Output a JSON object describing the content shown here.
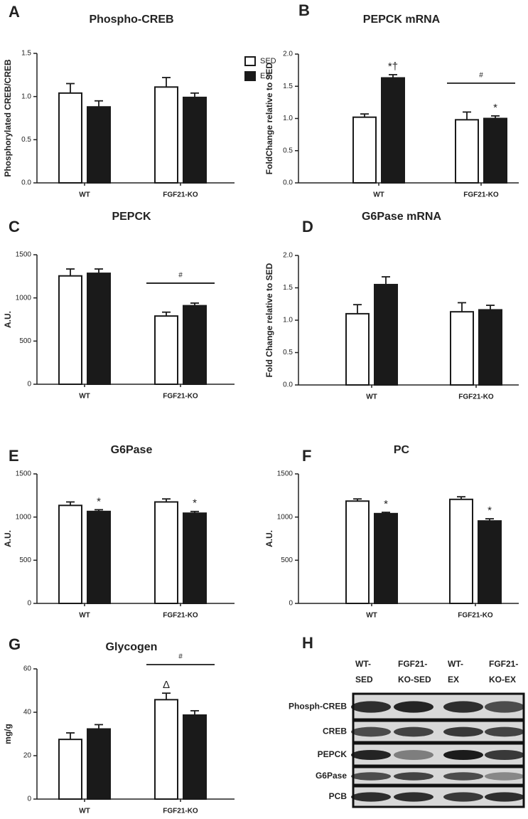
{
  "chart_data": [
    {
      "type": "bar",
      "panel": "A",
      "title": "Phospho-CREB",
      "y_label": "Phosphorylated CREB/CREB",
      "categories": [
        "WT",
        "FGF21-KO"
      ],
      "ylim": [
        0,
        1.5
      ],
      "yticks": [
        {
          "value": 0,
          "label": "0.0"
        },
        0.5,
        {
          "value": 1,
          "label": "1.0"
        },
        1.5
      ],
      "legend": true,
      "series": [
        {
          "name": "SED",
          "color": "#ffffff",
          "values": [
            1.04,
            1.11
          ],
          "errors": [
            0.11,
            0.11
          ]
        },
        {
          "name": "EX",
          "color": "#1a1a1a",
          "values": [
            0.88,
            0.99
          ],
          "errors": [
            0.07,
            0.05
          ]
        }
      ]
    },
    {
      "type": "bar",
      "panel": "B",
      "title": "PEPCK mRNA",
      "y_label": "FoldChange relative to SED",
      "categories": [
        "WT",
        "FGF21-KO"
      ],
      "ylim": [
        0,
        2
      ],
      "yticks": [
        {
          "value": 0,
          "label": "0.0"
        },
        0.5,
        {
          "value": 1,
          "label": "1.0"
        },
        1.5,
        {
          "value": 2,
          "label": "2.0"
        }
      ],
      "bracket_labels": [
        null,
        "#"
      ],
      "series": [
        {
          "name": "SED",
          "color": "#ffffff",
          "values": [
            1.02,
            0.98
          ],
          "errors": [
            0.05,
            0.12
          ],
          "marks": [
            null,
            null
          ]
        },
        {
          "name": "EX",
          "color": "#1a1a1a",
          "values": [
            1.63,
            1.0
          ],
          "errors": [
            0.05,
            0.04
          ],
          "marks": [
            "*†",
            "*"
          ]
        }
      ]
    },
    {
      "type": "bar",
      "panel": "C",
      "title": "PEPCK",
      "y_label": "A.U.",
      "categories": [
        "WT",
        "FGF21-KO"
      ],
      "ylim": [
        0,
        1500
      ],
      "yticks": [
        0,
        500,
        1000,
        1500
      ],
      "bracket_labels": [
        null,
        "#"
      ],
      "series": [
        {
          "name": "SED",
          "color": "#ffffff",
          "values": [
            1255,
            790
          ],
          "errors": [
            80,
            45
          ]
        },
        {
          "name": "EX",
          "color": "#1a1a1a",
          "values": [
            1285,
            910
          ],
          "errors": [
            50,
            30
          ]
        }
      ]
    },
    {
      "type": "bar",
      "panel": "D",
      "title": "G6Pase mRNA",
      "y_label": "Fold Change relative to SED",
      "categories": [
        "WT",
        "FGF21-KO"
      ],
      "ylim": [
        0,
        2
      ],
      "yticks": [
        {
          "value": 0,
          "label": "0.0"
        },
        0.5,
        {
          "value": 1,
          "label": "1.0"
        },
        1.5,
        {
          "value": 2,
          "label": "2.0"
        }
      ],
      "series": [
        {
          "name": "SED",
          "color": "#ffffff",
          "values": [
            1.1,
            1.13
          ],
          "errors": [
            0.14,
            0.14
          ]
        },
        {
          "name": "EX",
          "color": "#1a1a1a",
          "values": [
            1.55,
            1.16
          ],
          "errors": [
            0.12,
            0.07
          ]
        }
      ]
    },
    {
      "type": "bar",
      "panel": "E",
      "title": "G6Pase",
      "y_label": "A.U.",
      "categories": [
        "WT",
        "FGF21-KO"
      ],
      "ylim": [
        0,
        1500
      ],
      "yticks": [
        0,
        500,
        1000,
        1500
      ],
      "series": [
        {
          "name": "SED",
          "color": "#ffffff",
          "values": [
            1135,
            1175
          ],
          "errors": [
            40,
            35
          ],
          "marks": [
            null,
            null
          ]
        },
        {
          "name": "EX",
          "color": "#1a1a1a",
          "values": [
            1065,
            1045
          ],
          "errors": [
            20,
            20
          ],
          "marks": [
            "*",
            "*"
          ]
        }
      ]
    },
    {
      "type": "bar",
      "panel": "F",
      "title": "PC",
      "y_label": "A.U.",
      "categories": [
        "WT",
        "FGF21-KO"
      ],
      "ylim": [
        0,
        1500
      ],
      "yticks": [
        0,
        500,
        1000,
        1500
      ],
      "series": [
        {
          "name": "SED",
          "color": "#ffffff",
          "values": [
            1185,
            1205
          ],
          "errors": [
            25,
            30
          ],
          "marks": [
            null,
            null
          ]
        },
        {
          "name": "EX",
          "color": "#1a1a1a",
          "values": [
            1040,
            955
          ],
          "errors": [
            15,
            25
          ],
          "marks": [
            "*",
            "*"
          ]
        }
      ]
    },
    {
      "type": "bar",
      "panel": "G",
      "title": "Glycogen",
      "y_label": "mg/g",
      "categories": [
        "WT",
        "FGF21-KO"
      ],
      "ylim": [
        0,
        60
      ],
      "yticks": [
        0,
        20,
        40,
        60
      ],
      "bracket_labels": [
        null,
        "#"
      ],
      "series": [
        {
          "name": "SED",
          "color": "#ffffff",
          "values": [
            27.5,
            45.8
          ],
          "errors": [
            3,
            3
          ],
          "marks": [
            null,
            "Δ"
          ]
        },
        {
          "name": "EX",
          "color": "#1a1a1a",
          "values": [
            32.3,
            38.7
          ],
          "errors": [
            2,
            2
          ],
          "marks": [
            null,
            null
          ]
        }
      ]
    }
  ],
  "blot": {
    "panel": "H",
    "lanes": [
      [
        "WT-",
        "SED"
      ],
      [
        "FGF21-",
        "KO-SED"
      ],
      [
        "WT-",
        "EX"
      ],
      [
        "FGF21-",
        "KO-EX"
      ]
    ],
    "rows": [
      "Phosph-CREB",
      "CREB",
      "PEPCK",
      "G6Pase",
      "PCB"
    ]
  }
}
